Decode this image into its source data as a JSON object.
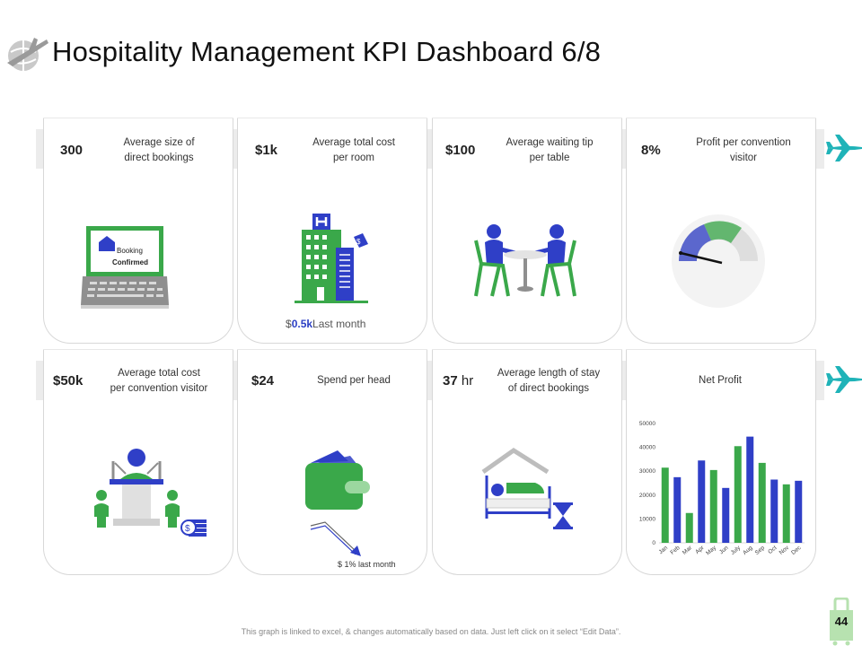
{
  "header": {
    "title": "Hospitality Management KPI Dashboard 6/8"
  },
  "kpis": [
    {
      "value": "300",
      "label_line1": "Average size of",
      "label_line2": "direct bookings"
    },
    {
      "value": "$1k",
      "label_line1": "Average total cost",
      "label_line2": "per room"
    },
    {
      "value": "$100",
      "label_line1": "Average waiting tip",
      "label_line2": "per table"
    },
    {
      "value": "8%",
      "label_line1": "Profit per convention",
      "label_line2": "visitor"
    },
    {
      "value": "$50k",
      "label_line1": "Average total cost",
      "label_line2": "per convention visitor"
    },
    {
      "value": "$24",
      "label_line1": "Spend per head",
      "label_line2": ""
    },
    {
      "value": "37",
      "unit": "hr",
      "label_line1": "Average length of stay",
      "label_line2": "of direct bookings"
    },
    {
      "value": "",
      "label_line1": "Net Profit",
      "label_line2": ""
    }
  ],
  "laptop": {
    "line1": "Booking",
    "line2": "Confirmed"
  },
  "room_note": {
    "prefix": "$",
    "amount": "0.5k",
    "suffix": "Last month"
  },
  "spend_note": {
    "text": "$ 1% last month"
  },
  "gauge": {
    "value_percent": 8
  },
  "chart_data": {
    "type": "bar",
    "title": "Net Profit",
    "categories": [
      "Jan",
      "Feb",
      "Mar",
      "Apr",
      "May",
      "Jun",
      "July",
      "Aug",
      "Sep",
      "Oct",
      "Nov",
      "Dec"
    ],
    "values": [
      31500,
      27500,
      12500,
      34500,
      30500,
      23000,
      40500,
      44500,
      33500,
      26500,
      24500,
      26000
    ],
    "colors": [
      "#3aa84a",
      "#2f3fc7",
      "#3aa84a",
      "#2f3fc7",
      "#3aa84a",
      "#2f3fc7",
      "#3aa84a",
      "#2f3fc7",
      "#3aa84a",
      "#2f3fc7",
      "#3aa84a",
      "#2f3fc7"
    ],
    "yticks": [
      0,
      10000,
      20000,
      30000,
      40000,
      50000
    ],
    "ylim": [
      0,
      50000
    ],
    "xlabel": "",
    "ylabel": ""
  },
  "footer": {
    "text": "This graph is linked to excel, & changes automatically based on data. Just left click on it select “Edit Data”."
  },
  "page": {
    "number": "44"
  },
  "colors": {
    "green": "#3aa84a",
    "blue": "#2f3fc7",
    "plane": "#1fb3b8"
  }
}
